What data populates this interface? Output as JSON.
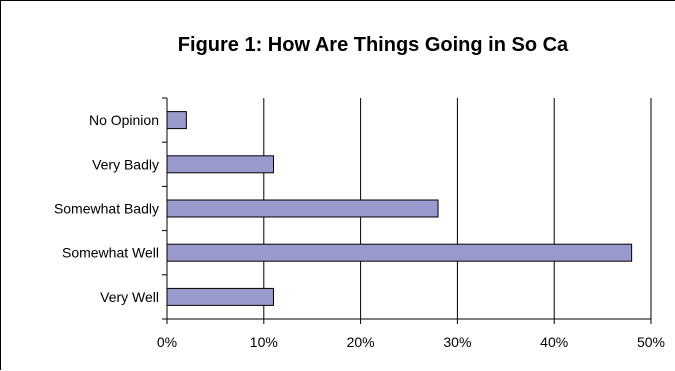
{
  "chart_data": {
    "type": "bar",
    "orientation": "horizontal",
    "title": "Figure 1: How Are Things Going in So Ca",
    "categories": [
      "No Opinion",
      "Very Badly",
      "Somewhat Badly",
      "Somewhat Well",
      "Very Well"
    ],
    "values": [
      2,
      11,
      28,
      48,
      11
    ],
    "xlim": [
      0,
      50
    ],
    "x_ticks": [
      "0%",
      "10%",
      "20%",
      "30%",
      "40%",
      "50%"
    ],
    "grid": "vertical major gridlines",
    "legend": "none",
    "bar_color": "#9999CC",
    "bar_edge_color": "#000000"
  }
}
